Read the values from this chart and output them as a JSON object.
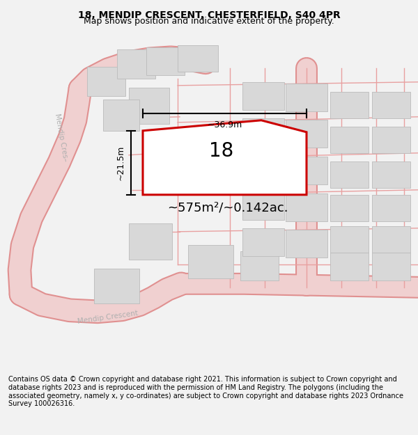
{
  "title": "18, MENDIP CRESCENT, CHESTERFIELD, S40 4PR",
  "subtitle": "Map shows position and indicative extent of the property.",
  "footer": "Contains OS data © Crown copyright and database right 2021. This information is subject to Crown copyright and database rights 2023 and is reproduced with the permission of HM Land Registry. The polygons (including the associated geometry, namely x, y co-ordinates) are subject to Crown copyright and database rights 2023 Ordnance Survey 100026316.",
  "bg_color": "#f2f2f2",
  "map_bg": "#ffffff",
  "road_fill": "#f0d0d0",
  "road_edge": "#e09090",
  "plot_line": "#cc0000",
  "bld_fill": "#d8d8d8",
  "bld_edge": "#bbbbbb",
  "prop_line": "#e8a0a0",
  "road_label_color": "#b0b0b0",
  "area_label": "~575m²/~0.142ac.",
  "number_label": "18",
  "dim_width": "~36.9m",
  "dim_height": "~21.5m",
  "title_fontsize": 10,
  "subtitle_fontsize": 9,
  "footer_fontsize": 7
}
